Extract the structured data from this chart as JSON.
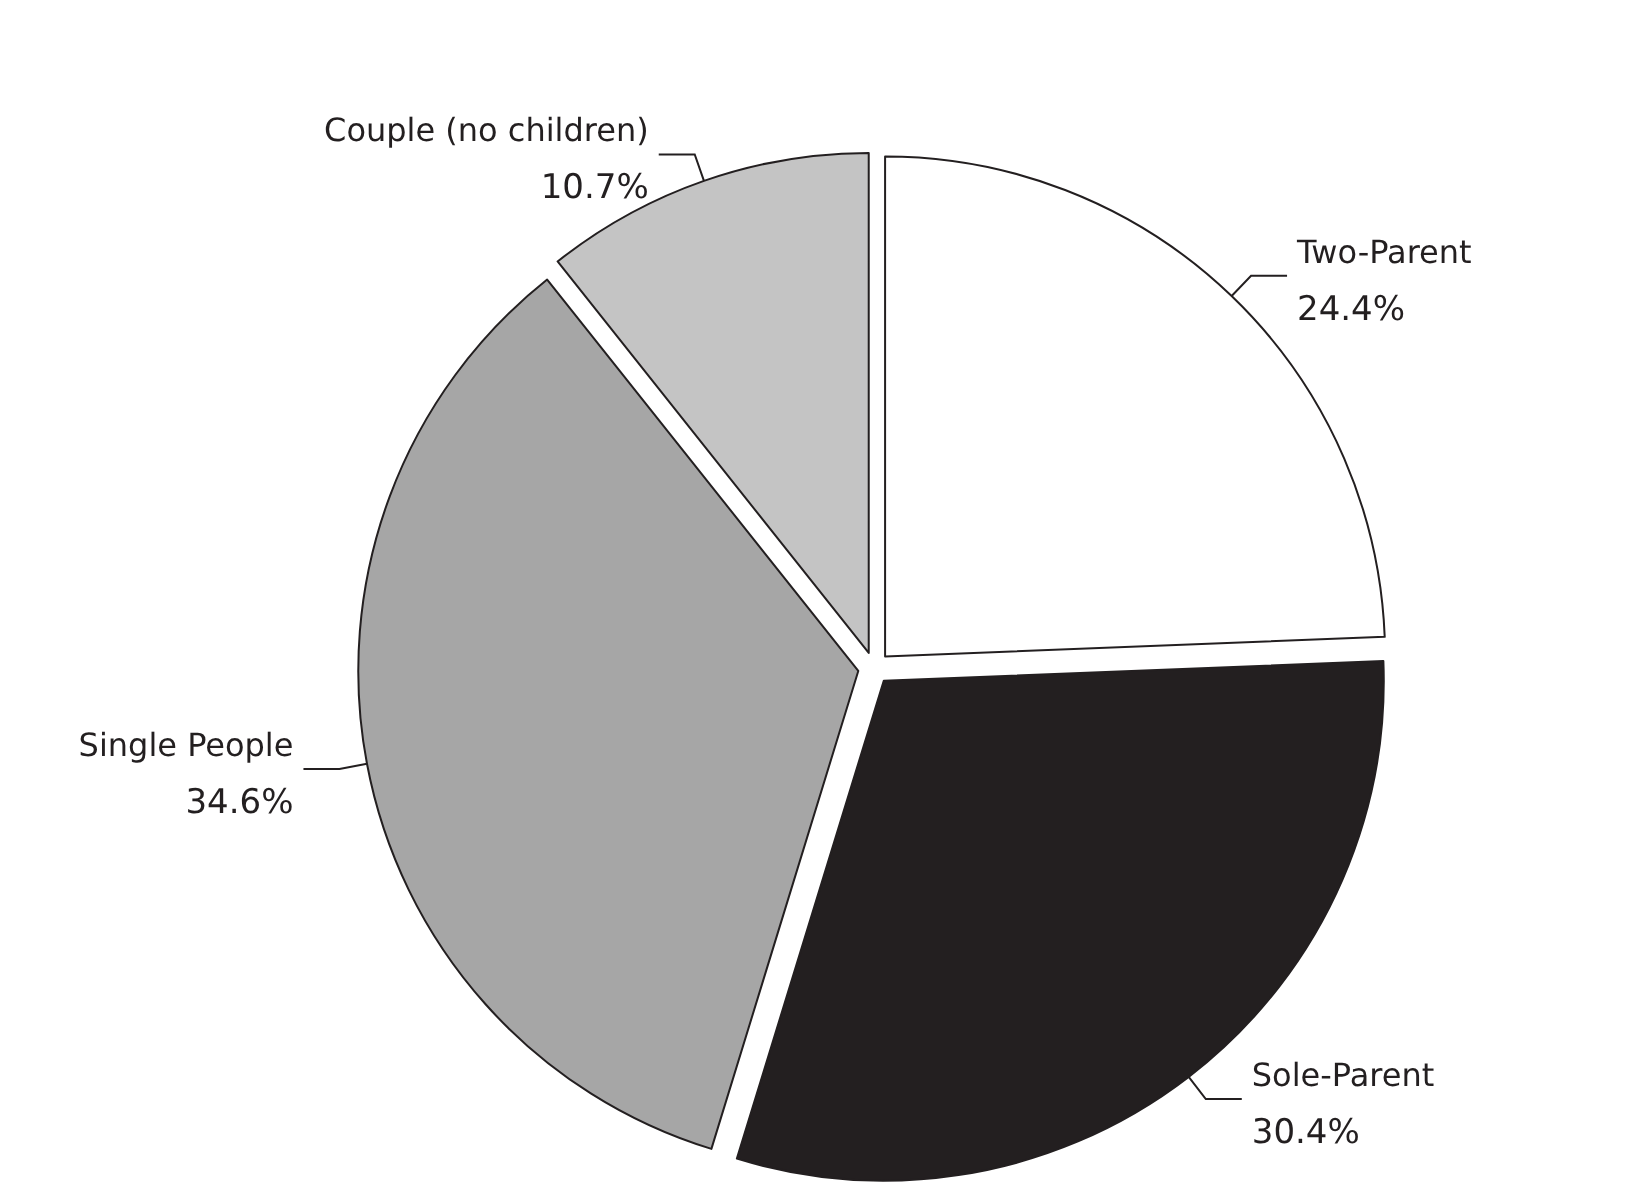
{
  "chart_data": {
    "type": "pie",
    "categories": [
      "Two-Parent",
      "Sole-Parent",
      "Single People",
      "Couple (no children)"
    ],
    "values": [
      24.4,
      30.4,
      34.6,
      10.7
    ],
    "colors": [
      "#ffffff",
      "#231f20",
      "#a6a6a6",
      "#c4c4c4"
    ],
    "value_labels": [
      "24.4%",
      "30.4%",
      "34.6%",
      "10.7%"
    ]
  }
}
